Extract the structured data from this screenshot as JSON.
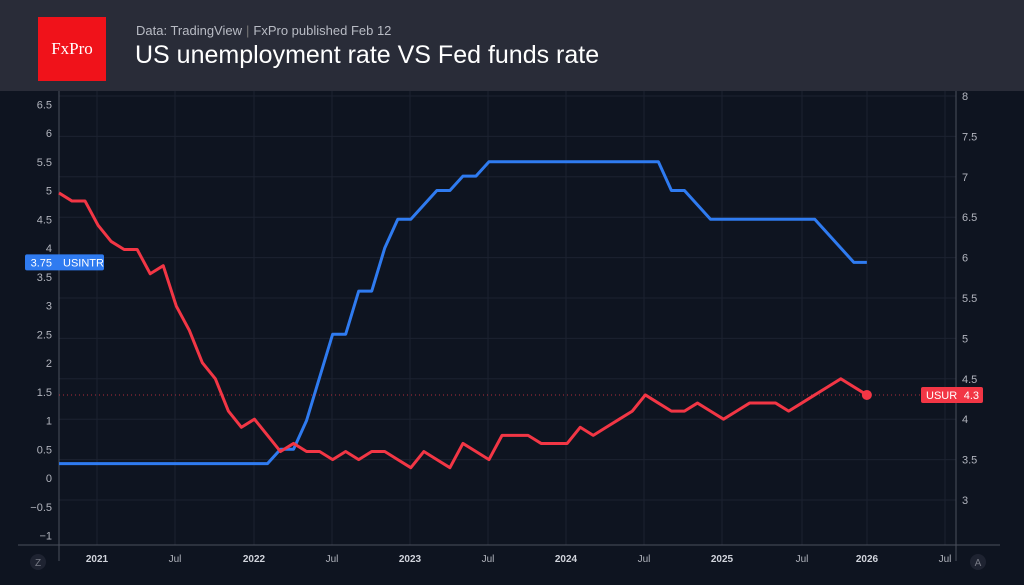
{
  "header": {
    "logo_text": "FxPro",
    "source": "Data: TradingView",
    "publisher": "FxPro published Feb 12",
    "title": "US unemployment rate VS Fed funds rate"
  },
  "controls": {
    "left_button": "Z",
    "right_button": "A"
  },
  "chart_data": {
    "type": "line",
    "title": "US unemployment rate VS Fed funds rate",
    "x_start": "2020-12",
    "x_end": "2026-01",
    "x_frequency": "monthly",
    "x_ticks": [
      "2021",
      "Jul",
      "2022",
      "Jul",
      "2023",
      "Jul",
      "2024",
      "Jul",
      "2025",
      "Jul",
      "2026",
      "Jul"
    ],
    "left_axis": {
      "ticks": [
        "6.5",
        "6",
        "5.5",
        "5",
        "4.5",
        "4",
        "3.5",
        "3",
        "2.5",
        "2",
        "1.5",
        "1",
        "0.5",
        "0",
        "−0.5",
        "−1"
      ],
      "range": [
        -1,
        6.5
      ]
    },
    "right_axis": {
      "ticks": [
        "8",
        "7.5",
        "7",
        "6.5",
        "6",
        "5.5",
        "5",
        "4.5",
        "4",
        "3.5",
        "3"
      ],
      "range": [
        3,
        8
      ]
    },
    "grid": true,
    "series": [
      {
        "name": "USINTR",
        "axis": "left",
        "color": "#2f7bf0",
        "last_value": "3.75",
        "values": [
          0.25,
          0.25,
          0.25,
          0.25,
          0.25,
          0.25,
          0.25,
          0.25,
          0.25,
          0.25,
          0.25,
          0.25,
          0.25,
          0.25,
          0.25,
          0.25,
          0.25,
          0.5,
          0.5,
          1.0,
          1.75,
          2.5,
          2.5,
          3.25,
          3.25,
          4.0,
          4.5,
          4.5,
          4.75,
          5.0,
          5.0,
          5.25,
          5.25,
          5.5,
          5.5,
          5.5,
          5.5,
          5.5,
          5.5,
          5.5,
          5.5,
          5.5,
          5.5,
          5.5,
          5.5,
          5.5,
          5.5,
          5.0,
          5.0,
          4.75,
          4.5,
          4.5,
          4.5,
          4.5,
          4.5,
          4.5,
          4.5,
          4.5,
          4.5,
          4.25,
          4.0,
          3.75,
          3.75
        ]
      },
      {
        "name": "USUR",
        "axis": "right",
        "color": "#f23645",
        "last_value": "4.3",
        "values": [
          6.8,
          6.7,
          6.7,
          6.4,
          6.2,
          6.1,
          6.1,
          5.8,
          5.9,
          5.4,
          5.1,
          4.7,
          4.5,
          4.1,
          3.9,
          4.0,
          3.8,
          3.6,
          3.7,
          3.6,
          3.6,
          3.5,
          3.6,
          3.5,
          3.6,
          3.6,
          3.5,
          3.4,
          3.6,
          3.5,
          3.4,
          3.7,
          3.6,
          3.5,
          3.8,
          3.8,
          3.8,
          3.7,
          3.7,
          3.7,
          3.9,
          3.8,
          3.9,
          4.0,
          4.1,
          4.3,
          4.2,
          4.1,
          4.1,
          4.2,
          4.1,
          4.0,
          4.1,
          4.2,
          4.2,
          4.2,
          4.1,
          4.2,
          4.3,
          4.4,
          4.5,
          null,
          4.3
        ]
      }
    ]
  }
}
